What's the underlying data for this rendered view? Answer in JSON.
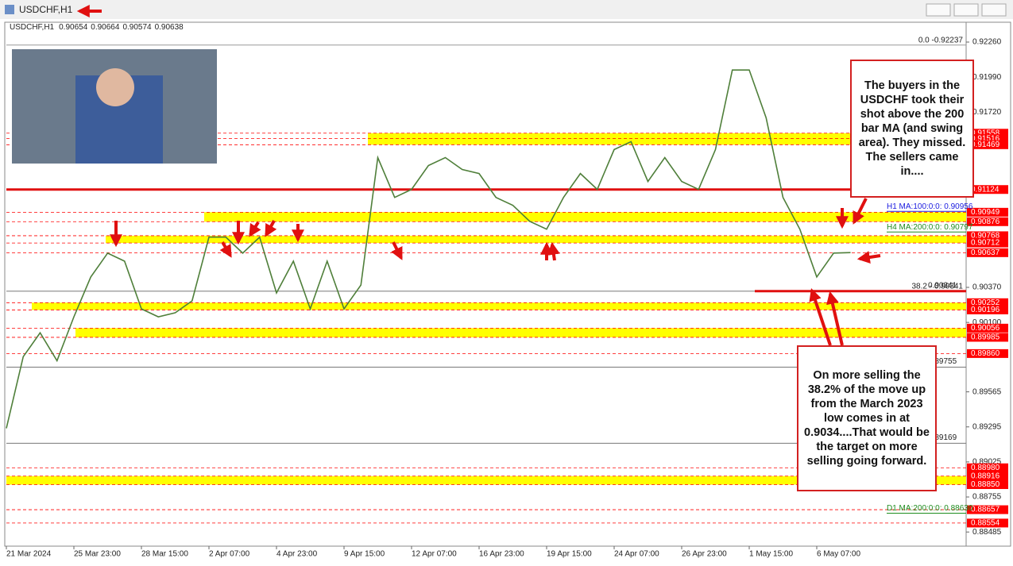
{
  "window_title": "USDCHF,H1",
  "chart_data": {
    "type": "line",
    "symbol": "USDCHF,H1",
    "ohlc": [
      0.90654,
      0.90664,
      0.90574,
      0.90638
    ],
    "categories": [
      "21 Mar 2024",
      null,
      null,
      null,
      "25 Mar 23:00",
      null,
      null,
      null,
      "28 Mar 15:00",
      null,
      null,
      null,
      "2 Apr 07:00",
      null,
      null,
      null,
      "4 Apr 23:00",
      null,
      null,
      null,
      "9 Apr 15:00",
      null,
      null,
      null,
      "12 Apr 07:00",
      null,
      null,
      null,
      "16 Apr 23:00",
      null,
      null,
      null,
      "19 Apr 15:00",
      null,
      null,
      null,
      "24 Apr 07:00",
      null,
      null,
      null,
      "26 Apr 23:00",
      null,
      null,
      null,
      "1 May 15:00",
      null,
      null,
      null,
      "6 May 07:00",
      null,
      null,
      null,
      null,
      null,
      null,
      null,
      null
    ],
    "series": [
      {
        "name": "USDCHF,H1",
        "color": "#4f7f3a",
        "values": [
          0.89284,
          0.89836,
          0.9002,
          0.89805,
          0.90143,
          0.9045,
          0.90634,
          0.90572,
          0.90204,
          0.90143,
          0.90174,
          0.90266,
          0.90757,
          0.90757,
          0.90634,
          0.90757,
          0.90327,
          0.90572,
          0.90204,
          0.90572,
          0.90204,
          0.90388,
          0.9137,
          0.91063,
          0.91125,
          0.91309,
          0.9137,
          0.91278,
          0.91247,
          0.91063,
          0.91002,
          0.90879,
          0.90818,
          0.91063,
          0.91247,
          0.91125,
          0.91432,
          0.91493,
          0.91186,
          0.9137,
          0.91186,
          0.91125,
          0.91432,
          0.92045,
          0.92045,
          0.91677,
          0.91063,
          0.90818,
          0.9045,
          0.90634,
          0.90638,
          null,
          null,
          null,
          null,
          null,
          null
        ]
      }
    ],
    "ylim": [
      0.88376,
      0.92413
    ],
    "yticks": [
      {
        "value": 0.9226,
        "label": "0.92260"
      },
      {
        "value": 0.9199,
        "label": "0.91990"
      },
      {
        "value": 0.9172,
        "label": "0.91720"
      },
      {
        "value": 0.9037,
        "label": "0.90370"
      },
      {
        "value": 0.901,
        "label": "0.90100"
      },
      0.89565,
      0.89295,
      0.89025,
      0.88755,
      0.88485
    ],
    "zones": [
      [
        0.91469,
        0.91558
      ],
      [
        0.90876,
        0.90949
      ],
      [
        0.90712,
        0.90768
      ],
      [
        0.90196,
        0.90252
      ],
      [
        0.89985,
        0.90056
      ],
      [
        0.8885,
        0.88916
      ]
    ],
    "zone_color": "#ffff00",
    "price_labels": [
      {
        "value": 0.91558
      },
      {
        "value": 0.91516
      },
      {
        "value": 0.91469
      },
      {
        "value": 0.91124
      },
      {
        "value": 0.90949
      },
      {
        "value": 0.90876
      },
      {
        "value": 0.90768
      },
      {
        "value": 0.90712
      },
      {
        "value": 0.90637
      },
      {
        "value": 0.90252
      },
      {
        "value": 0.90196
      },
      {
        "value": 0.90056
      },
      {
        "value": 0.89985
      },
      {
        "value": 0.8986,
        "label": "0.89860"
      },
      {
        "value": 0.8898,
        "label": "0.88980"
      },
      {
        "value": 0.88916
      },
      {
        "value": 0.8885,
        "label": "0.88850"
      },
      {
        "value": 0.88657
      },
      {
        "value": 0.88554
      }
    ],
    "price_label_color": "#ff0000",
    "key_levels": [
      {
        "value": 0.91124,
        "color": "#e01010"
      },
      {
        "value": 0.90341,
        "color": "#e01010"
      }
    ],
    "gray_levels": [
      0.90341,
      0.89755,
      0.89169
    ],
    "fib_levels": [
      {
        "value": 0.92237,
        "label": "0.0 -0.92237"
      },
      {
        "value": 0.90341,
        "label": "38.2 - 0.90341"
      }
    ],
    "ma_labels": [
      {
        "value": 0.90956,
        "label": "H1 MA:100:0:0: 0.90956",
        "color": "#1a1adf"
      },
      {
        "value": 0.90797,
        "label": "H4 MA:200:0:0: 0.90797",
        "color": "#1e8c1e"
      },
      {
        "value": 0.8863,
        "label": "D1 MA:200:0:0: 0.88630",
        "color": "#1e8c1e"
      }
    ],
    "annotations": [
      "The buyers in the USDCHF took their shot above the 200 bar MA (and swing area). They missed. The sellers came in....",
      "On more selling the 38.2% of the move up from the March 2023 low comes in at 0.9034....That would be the target on more selling going forward."
    ]
  }
}
